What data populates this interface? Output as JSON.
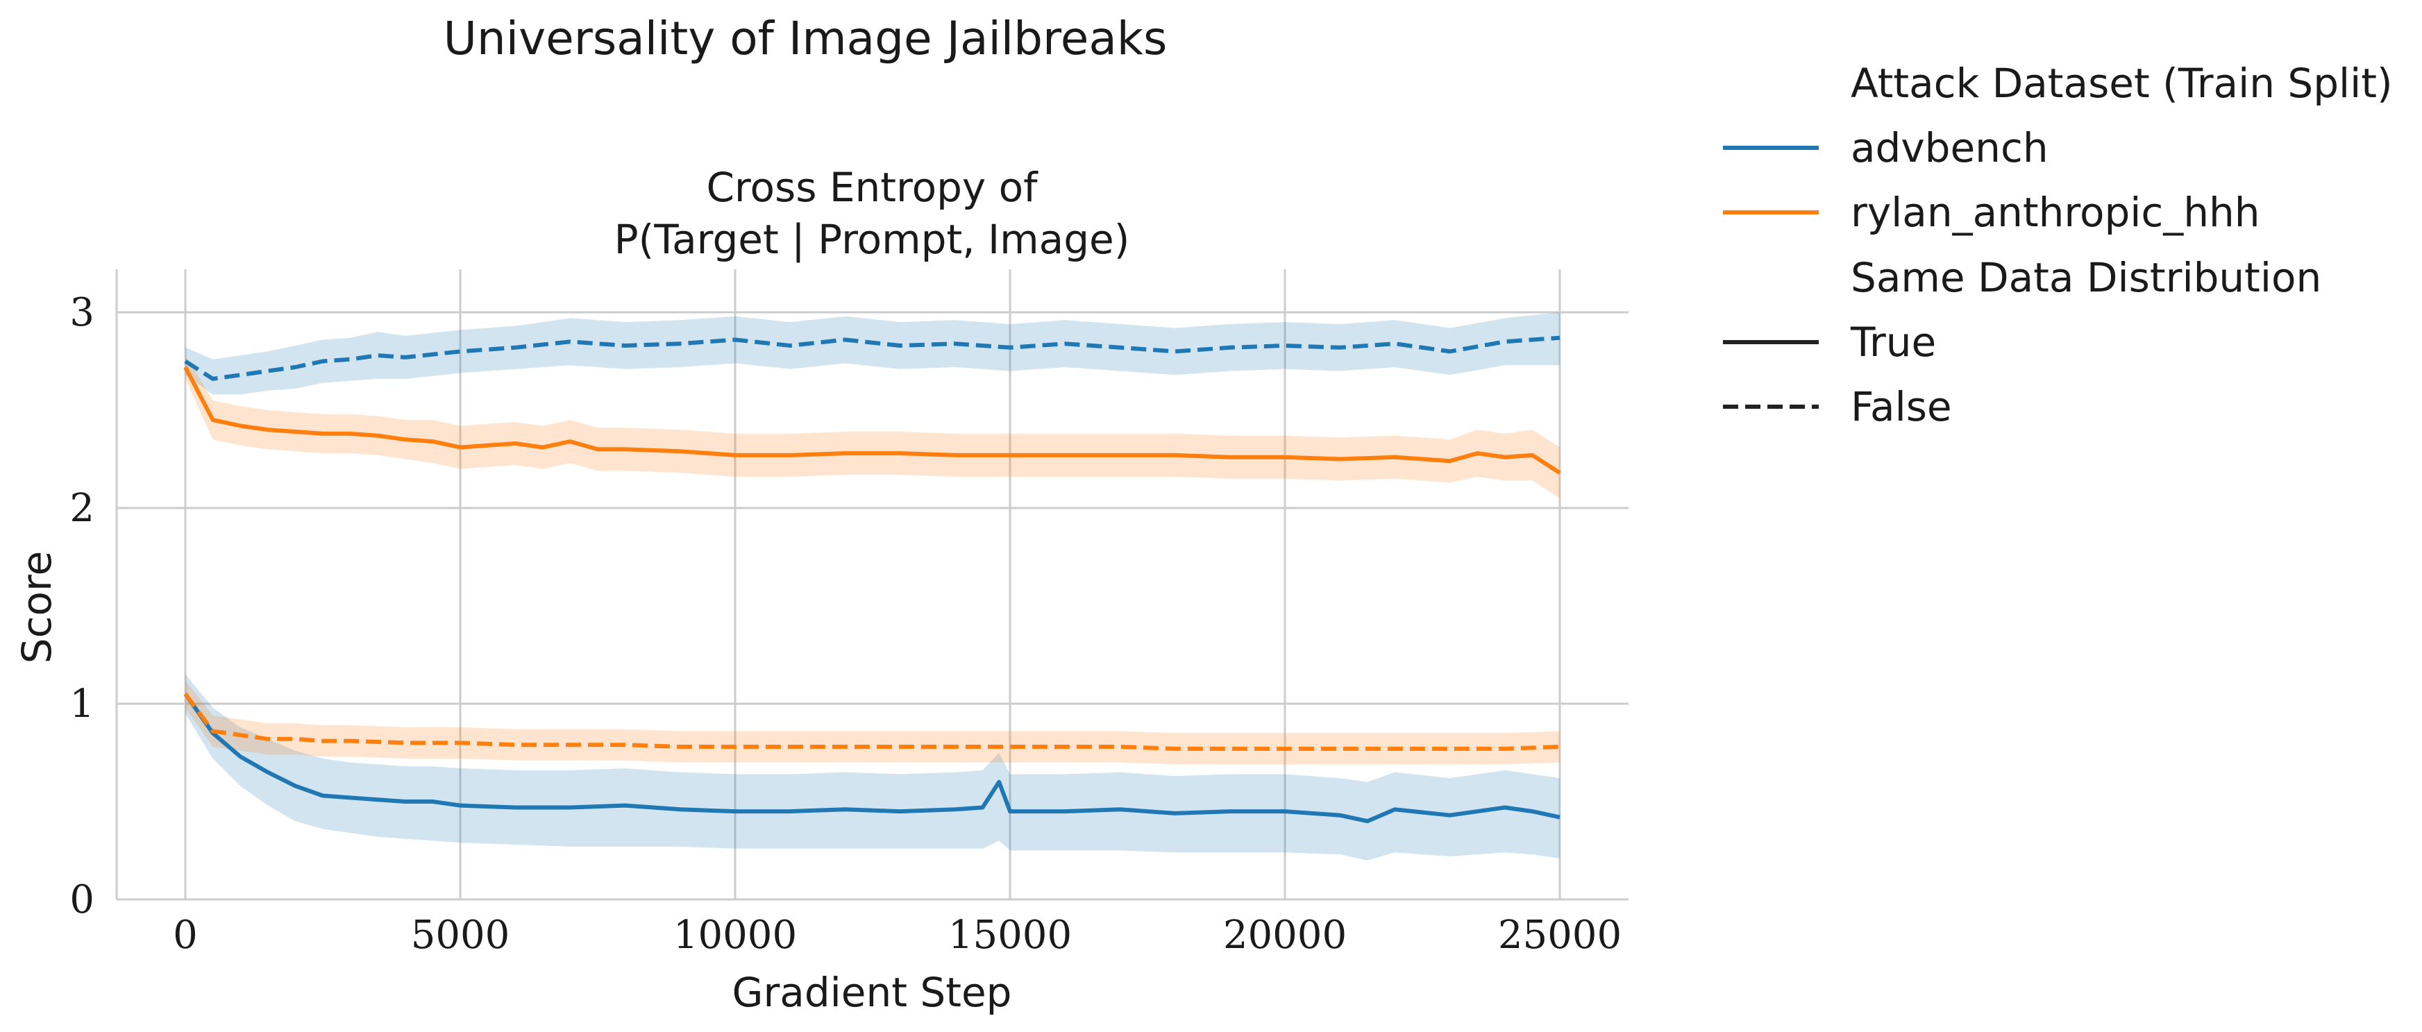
{
  "figure": {
    "suptitle": "Universality of Image Jailbreaks"
  },
  "legend": {
    "hue_title": "Attack Dataset (Train Split)",
    "style_title": "Same Data Distribution",
    "placement": "outside-right"
  },
  "chart_data": {
    "type": "line",
    "title_line1": "Cross Entropy of",
    "title_line2": "P(Target | Prompt, Image)",
    "xlabel": "Gradient Step",
    "ylabel": "Score",
    "xlim": [
      -1250,
      26250
    ],
    "ylim": [
      0,
      3.22
    ],
    "xticks": [
      0,
      5000,
      10000,
      15000,
      20000,
      25000
    ],
    "xtick_labels": [
      "0",
      "5000",
      "10000",
      "15000",
      "20000",
      "25000"
    ],
    "yticks": [
      0,
      1,
      2,
      3
    ],
    "ytick_labels": [
      "0",
      "1",
      "2",
      "3"
    ],
    "grid": true,
    "hue_entries": [
      {
        "name": "advbench",
        "color": "#1f77b4"
      },
      {
        "name": "rylan_anthropic_hhh",
        "color": "#ff7f0e"
      }
    ],
    "style_entries": [
      {
        "name": "True",
        "dash": "solid"
      },
      {
        "name": "False",
        "dash": "dashed"
      }
    ],
    "series": [
      {
        "dataset": "advbench",
        "same_distribution": "True",
        "color": "#1f77b4",
        "dash": "solid",
        "x": [
          0,
          500,
          1000,
          1500,
          2000,
          2500,
          3000,
          3500,
          4000,
          4500,
          5000,
          6000,
          7000,
          8000,
          9000,
          10000,
          11000,
          12000,
          13000,
          14000,
          14500,
          14800,
          15000,
          16000,
          17000,
          18000,
          19000,
          20000,
          21000,
          21500,
          22000,
          23000,
          24000,
          24500,
          25000
        ],
        "y": [
          1.05,
          0.85,
          0.73,
          0.65,
          0.58,
          0.53,
          0.52,
          0.51,
          0.5,
          0.5,
          0.48,
          0.47,
          0.47,
          0.48,
          0.46,
          0.45,
          0.45,
          0.46,
          0.45,
          0.46,
          0.47,
          0.6,
          0.45,
          0.45,
          0.46,
          0.44,
          0.45,
          0.45,
          0.43,
          0.4,
          0.46,
          0.43,
          0.47,
          0.45,
          0.42
        ],
        "ci_low": [
          0.95,
          0.72,
          0.58,
          0.48,
          0.4,
          0.36,
          0.34,
          0.32,
          0.31,
          0.3,
          0.29,
          0.28,
          0.27,
          0.27,
          0.27,
          0.26,
          0.26,
          0.26,
          0.26,
          0.26,
          0.26,
          0.3,
          0.25,
          0.25,
          0.25,
          0.24,
          0.24,
          0.24,
          0.23,
          0.2,
          0.24,
          0.22,
          0.24,
          0.23,
          0.21
        ],
        "ci_high": [
          1.15,
          0.98,
          0.88,
          0.82,
          0.76,
          0.72,
          0.7,
          0.69,
          0.68,
          0.68,
          0.67,
          0.66,
          0.66,
          0.67,
          0.65,
          0.64,
          0.64,
          0.65,
          0.64,
          0.65,
          0.66,
          0.75,
          0.64,
          0.64,
          0.65,
          0.63,
          0.64,
          0.64,
          0.62,
          0.6,
          0.65,
          0.62,
          0.66,
          0.64,
          0.62
        ]
      },
      {
        "dataset": "advbench",
        "same_distribution": "False",
        "color": "#1f77b4",
        "dash": "dashed",
        "x": [
          0,
          500,
          1000,
          1500,
          2000,
          2500,
          3000,
          3500,
          4000,
          5000,
          6000,
          7000,
          8000,
          9000,
          10000,
          11000,
          12000,
          13000,
          14000,
          15000,
          16000,
          17000,
          18000,
          19000,
          20000,
          21000,
          22000,
          23000,
          24000,
          25000
        ],
        "y": [
          2.75,
          2.66,
          2.68,
          2.7,
          2.72,
          2.75,
          2.76,
          2.78,
          2.77,
          2.8,
          2.82,
          2.85,
          2.83,
          2.84,
          2.86,
          2.83,
          2.86,
          2.83,
          2.84,
          2.82,
          2.84,
          2.82,
          2.8,
          2.82,
          2.83,
          2.82,
          2.84,
          2.8,
          2.85,
          2.87
        ],
        "ci_low": [
          2.68,
          2.58,
          2.58,
          2.6,
          2.61,
          2.64,
          2.65,
          2.66,
          2.66,
          2.69,
          2.71,
          2.73,
          2.71,
          2.72,
          2.74,
          2.71,
          2.74,
          2.71,
          2.72,
          2.7,
          2.72,
          2.7,
          2.68,
          2.7,
          2.71,
          2.7,
          2.72,
          2.68,
          2.73,
          2.73
        ],
        "ci_high": [
          2.82,
          2.76,
          2.78,
          2.8,
          2.83,
          2.86,
          2.87,
          2.9,
          2.88,
          2.91,
          2.93,
          2.97,
          2.95,
          2.96,
          2.98,
          2.95,
          2.98,
          2.95,
          2.96,
          2.94,
          2.96,
          2.94,
          2.92,
          2.94,
          2.95,
          2.94,
          2.96,
          2.92,
          2.97,
          3.0
        ]
      },
      {
        "dataset": "rylan_anthropic_hhh",
        "same_distribution": "True",
        "color": "#ff7f0e",
        "dash": "solid",
        "x": [
          0,
          500,
          1000,
          1500,
          2000,
          2500,
          3000,
          3500,
          4000,
          4500,
          5000,
          5500,
          6000,
          6500,
          7000,
          7500,
          8000,
          9000,
          10000,
          11000,
          12000,
          13000,
          14000,
          15000,
          16000,
          17000,
          18000,
          19000,
          20000,
          21000,
          22000,
          23000,
          23500,
          24000,
          24500,
          25000
        ],
        "y": [
          2.72,
          2.45,
          2.42,
          2.4,
          2.39,
          2.38,
          2.38,
          2.37,
          2.35,
          2.34,
          2.31,
          2.32,
          2.33,
          2.31,
          2.34,
          2.3,
          2.3,
          2.29,
          2.27,
          2.27,
          2.28,
          2.28,
          2.27,
          2.27,
          2.27,
          2.27,
          2.27,
          2.26,
          2.26,
          2.25,
          2.26,
          2.24,
          2.28,
          2.26,
          2.27,
          2.18
        ],
        "ci_low": [
          2.66,
          2.35,
          2.32,
          2.3,
          2.29,
          2.28,
          2.28,
          2.27,
          2.25,
          2.23,
          2.2,
          2.21,
          2.22,
          2.2,
          2.23,
          2.19,
          2.19,
          2.18,
          2.16,
          2.16,
          2.17,
          2.17,
          2.16,
          2.16,
          2.16,
          2.16,
          2.16,
          2.15,
          2.15,
          2.14,
          2.15,
          2.13,
          2.16,
          2.14,
          2.14,
          2.05
        ],
        "ci_high": [
          2.78,
          2.55,
          2.52,
          2.5,
          2.49,
          2.48,
          2.48,
          2.47,
          2.45,
          2.45,
          2.42,
          2.43,
          2.44,
          2.42,
          2.45,
          2.41,
          2.41,
          2.4,
          2.38,
          2.38,
          2.39,
          2.39,
          2.38,
          2.38,
          2.38,
          2.38,
          2.38,
          2.37,
          2.37,
          2.36,
          2.37,
          2.35,
          2.4,
          2.38,
          2.4,
          2.31
        ]
      },
      {
        "dataset": "rylan_anthropic_hhh",
        "same_distribution": "False",
        "color": "#ff7f0e",
        "dash": "dashed",
        "x": [
          0,
          500,
          1000,
          1500,
          2000,
          2500,
          3000,
          4000,
          5000,
          6000,
          7000,
          8000,
          9000,
          10000,
          11000,
          12000,
          13000,
          14000,
          15000,
          16000,
          17000,
          18000,
          19000,
          20000,
          21000,
          22000,
          23000,
          24000,
          25000
        ],
        "y": [
          1.05,
          0.86,
          0.84,
          0.82,
          0.82,
          0.81,
          0.81,
          0.8,
          0.8,
          0.79,
          0.79,
          0.79,
          0.78,
          0.78,
          0.78,
          0.78,
          0.78,
          0.78,
          0.78,
          0.78,
          0.78,
          0.77,
          0.77,
          0.77,
          0.77,
          0.77,
          0.77,
          0.77,
          0.78
        ],
        "ci_low": [
          0.98,
          0.78,
          0.76,
          0.74,
          0.74,
          0.73,
          0.73,
          0.72,
          0.72,
          0.71,
          0.71,
          0.71,
          0.7,
          0.7,
          0.7,
          0.7,
          0.7,
          0.7,
          0.7,
          0.7,
          0.7,
          0.69,
          0.69,
          0.69,
          0.69,
          0.69,
          0.69,
          0.69,
          0.7
        ],
        "ci_high": [
          1.12,
          0.94,
          0.92,
          0.9,
          0.9,
          0.89,
          0.89,
          0.88,
          0.88,
          0.87,
          0.87,
          0.87,
          0.86,
          0.86,
          0.86,
          0.86,
          0.86,
          0.86,
          0.86,
          0.86,
          0.86,
          0.85,
          0.85,
          0.85,
          0.85,
          0.85,
          0.85,
          0.85,
          0.86
        ]
      }
    ]
  }
}
